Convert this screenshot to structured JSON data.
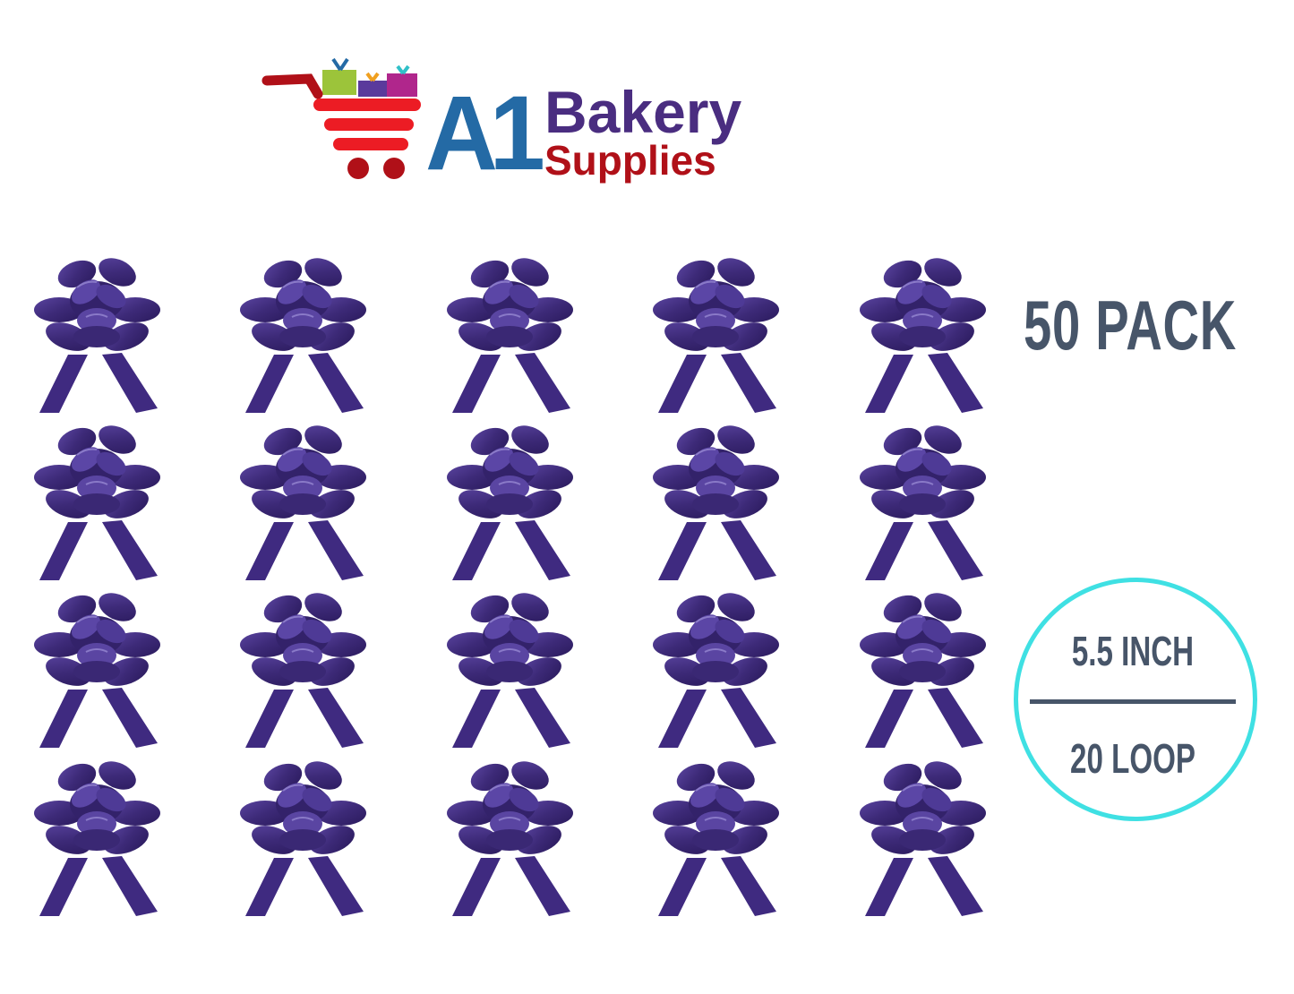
{
  "logo": {
    "a1": "A1",
    "bakery": "Bakery",
    "supplies": "Supplies"
  },
  "product": {
    "pack_label": "50 PACK",
    "size_label": "5.5 INCH",
    "loop_label": "20 LOOP",
    "bow_color": "#3d2a78",
    "bows_shown": 20
  },
  "colors": {
    "accent_circle": "#3fe0e3",
    "text": "#475569"
  }
}
